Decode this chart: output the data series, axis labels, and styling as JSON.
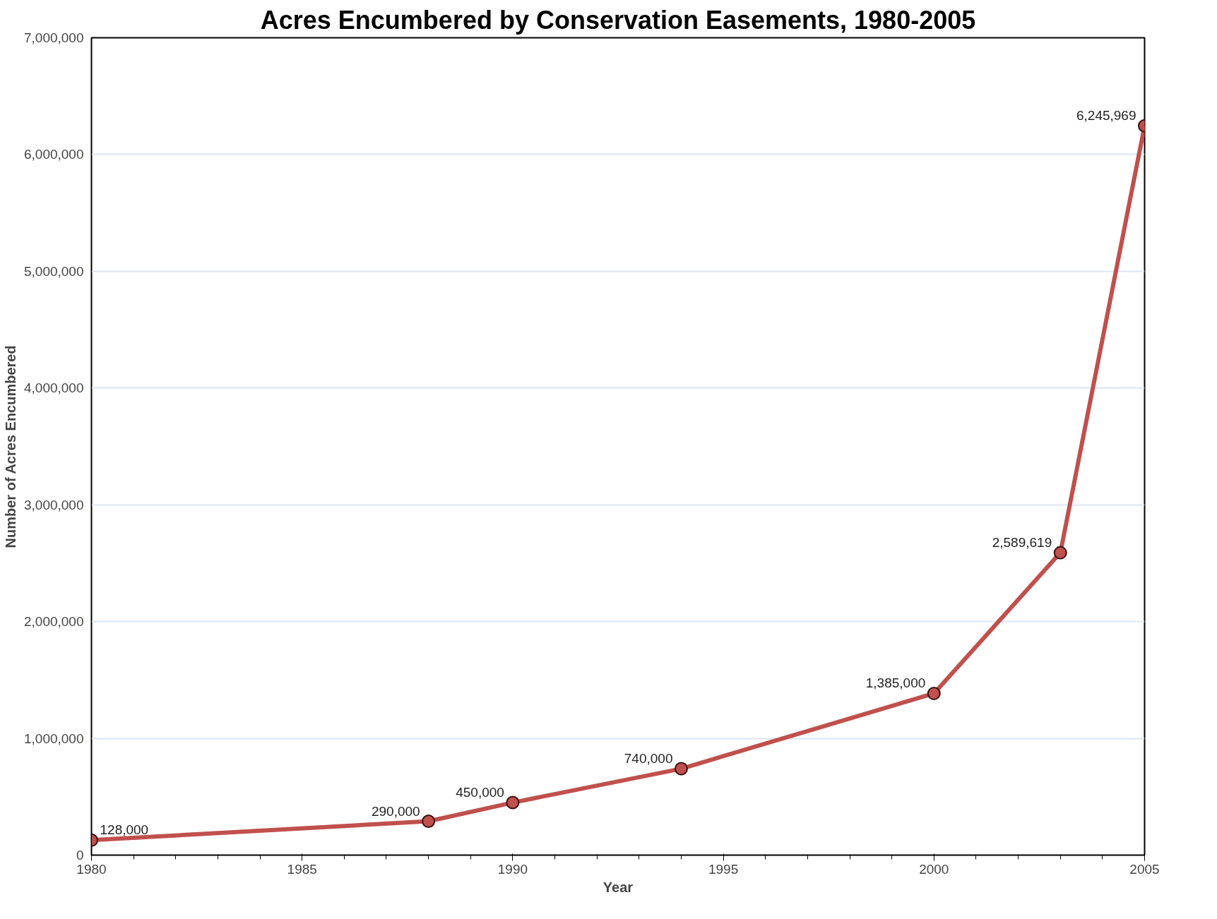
{
  "chart_data": {
    "type": "line",
    "title": "Acres Encumbered by Conservation Easements, 1980-2005",
    "xlabel": "Year",
    "ylabel": "Number of Acres Encumbered",
    "x": [
      1980,
      1988,
      1990,
      1994,
      2000,
      2003,
      2005
    ],
    "series": [
      {
        "color": "#c0504d",
        "values": [
          128000,
          290000,
          450000,
          740000,
          1385000,
          2589619,
          6245969
        ],
        "value_labels": [
          "128,000",
          "290,000",
          "450,000",
          "740,000",
          "1,385,000",
          "2,589,619",
          "6,245,969"
        ]
      }
    ],
    "xlim": [
      1980,
      2005
    ],
    "xticks": [
      1980,
      1985,
      1990,
      1995,
      2000,
      2005
    ],
    "ylim": [
      0,
      7000000
    ],
    "yticks": [
      0,
      {
        "value": 1000000,
        "label": "1,000,000"
      },
      {
        "value": 2000000,
        "label": "2,000,000"
      },
      {
        "value": 3000000,
        "label": "3,000,000"
      },
      {
        "value": 4000000,
        "label": "4,000,000"
      },
      {
        "value": 5000000,
        "label": "5,000,000"
      },
      {
        "value": 6000000,
        "label": "6,000,000"
      },
      {
        "value": 7000000,
        "label": "7,000,000"
      }
    ],
    "grid": "y",
    "marker": "circle",
    "line_style": "solid"
  }
}
